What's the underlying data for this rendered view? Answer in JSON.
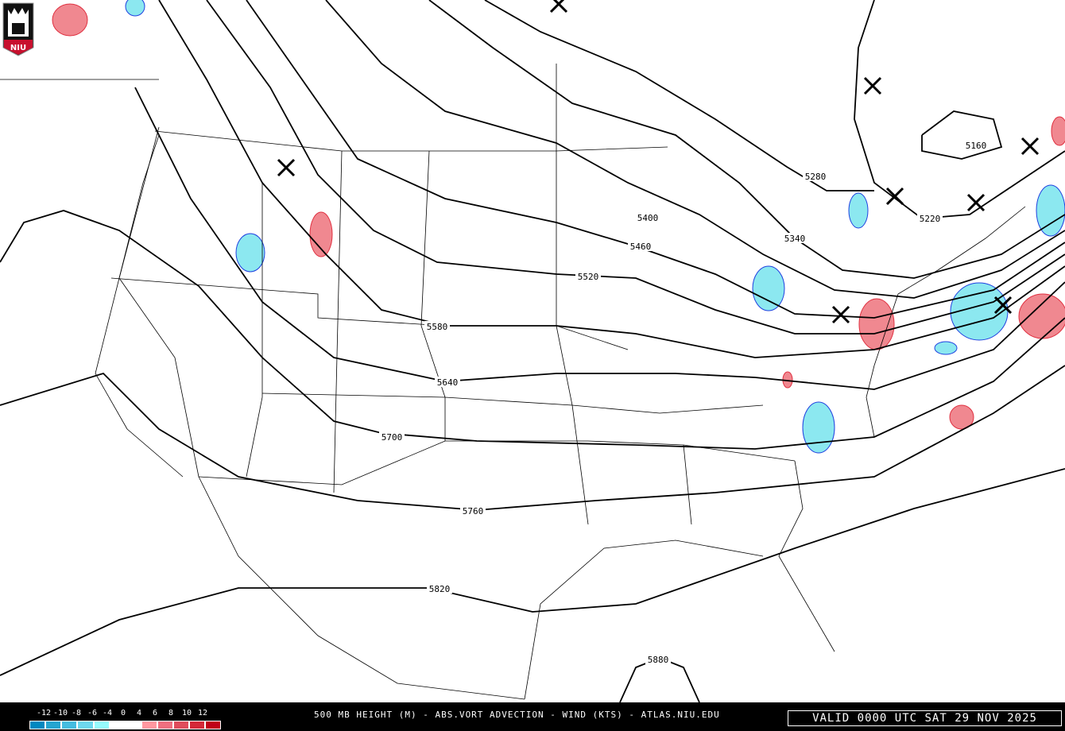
{
  "map": {
    "title": "500 MB HEIGHT (M) - ABS.VORT ADVECTION - WIND (KTS) - ATLAS.NIU.EDU",
    "valid_time": "VALID 0000 UTC SAT 29 NOV 2025",
    "logo_text": "NIU",
    "height_contours": [
      {
        "label": "5160"
      },
      {
        "label": "5220"
      },
      {
        "label": "5280"
      },
      {
        "label": "5340"
      },
      {
        "label": "5400"
      },
      {
        "label": "5460"
      },
      {
        "label": "5520"
      },
      {
        "label": "5580"
      },
      {
        "label": "5640"
      },
      {
        "label": "5700"
      },
      {
        "label": "5760"
      },
      {
        "label": "5820"
      },
      {
        "label": "5880"
      }
    ],
    "trough_markers": "x-mark"
  },
  "legend": {
    "labels": [
      "-12",
      "-10",
      "-8",
      "-6",
      "-4",
      "0",
      "4",
      "6",
      "8",
      "10",
      "12"
    ],
    "colors": [
      "#0088c0",
      "#25a5d0",
      "#45bde0",
      "#6dd8ee",
      "#96fafc",
      "#ffffff",
      "#ff98a0",
      "#f07080",
      "#e04c5c",
      "#d42838",
      "#c00018"
    ]
  }
}
